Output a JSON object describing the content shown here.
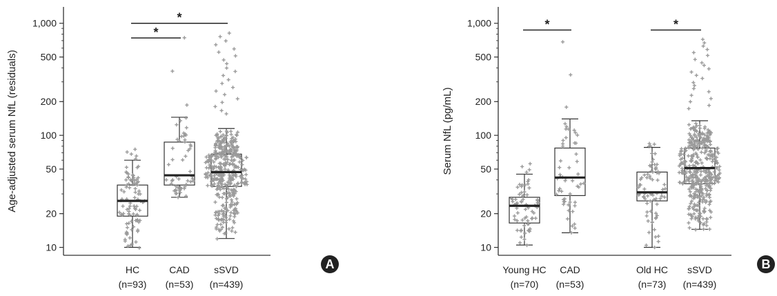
{
  "chart_data": [
    {
      "type": "box",
      "panel_label": "A",
      "ylabel": "Age-adjusted serum NfL (residuals)",
      "yscale": "log",
      "ylim": [
        8.5,
        1400
      ],
      "yticks": [
        {
          "value": 10,
          "label": "10"
        },
        {
          "value": 20,
          "label": "20"
        },
        {
          "value": 50,
          "label": "50"
        },
        {
          "value": 100,
          "label": "100"
        },
        {
          "value": 200,
          "label": "200"
        },
        {
          "value": 500,
          "label": "500"
        },
        {
          "value": 1000,
          "label": "1,000"
        }
      ],
      "groups": [
        {
          "name": "HC",
          "n_label": "(n=93)",
          "n": 93,
          "q1": 19,
          "median": 26,
          "q3": 36,
          "whisker_low": 10,
          "whisker_high": 60,
          "min": 10,
          "max": 75
        },
        {
          "name": "CAD",
          "n_label": "(n=53)",
          "n": 53,
          "q1": 36,
          "median": 44,
          "q3": 87,
          "whisker_low": 28,
          "whisker_high": 145,
          "min": 28,
          "max": 750
        },
        {
          "name": "sSVD",
          "n_label": "(n=439)",
          "n": 439,
          "q1": 35,
          "median": 47,
          "q3": 68,
          "whisker_low": 12,
          "whisker_high": 115,
          "min": 12,
          "max": 820
        }
      ],
      "significance": [
        {
          "from": 0,
          "to": 2,
          "y": 1000,
          "label": "*"
        },
        {
          "from": 0,
          "to": 1,
          "y": 740,
          "label": "*"
        }
      ]
    },
    {
      "type": "box",
      "panel_label": "B",
      "ylabel": "Serum NfL (pg/mL)",
      "yscale": "log",
      "ylim": [
        8.5,
        1400
      ],
      "yticks": [
        {
          "value": 10,
          "label": "10"
        },
        {
          "value": 20,
          "label": "20"
        },
        {
          "value": 50,
          "label": "50"
        },
        {
          "value": 100,
          "label": "100"
        },
        {
          "value": 200,
          "label": "200"
        },
        {
          "value": 500,
          "label": "500"
        },
        {
          "value": 1000,
          "label": "1,000"
        }
      ],
      "groups": [
        {
          "name": "Young HC",
          "n_label": "(n=70)",
          "n": 70,
          "q1": 16.5,
          "median": 23.5,
          "q3": 28,
          "whisker_low": 10.5,
          "whisker_high": 45,
          "min": 10.5,
          "max": 56
        },
        {
          "name": "CAD",
          "n_label": "(n=53)",
          "n": 53,
          "q1": 29,
          "median": 42,
          "q3": 77,
          "whisker_low": 13.5,
          "whisker_high": 140,
          "min": 13.5,
          "max": 680
        },
        {
          "name": "Old HC",
          "n_label": "(n=73)",
          "n": 73,
          "q1": 26,
          "median": 31,
          "q3": 47,
          "whisker_low": 10,
          "whisker_high": 78,
          "min": 10,
          "max": 85
        },
        {
          "name": "sSVD",
          "n_label": "(n=439)",
          "n": 439,
          "q1": 37,
          "median": 51,
          "q3": 77,
          "whisker_low": 14.5,
          "whisker_high": 135,
          "min": 14.5,
          "max": 720
        }
      ],
      "significance": [
        {
          "from": 0,
          "to": 1,
          "y": 870,
          "label": "*"
        },
        {
          "from": 2,
          "to": 3,
          "y": 870,
          "label": "*"
        }
      ]
    }
  ]
}
